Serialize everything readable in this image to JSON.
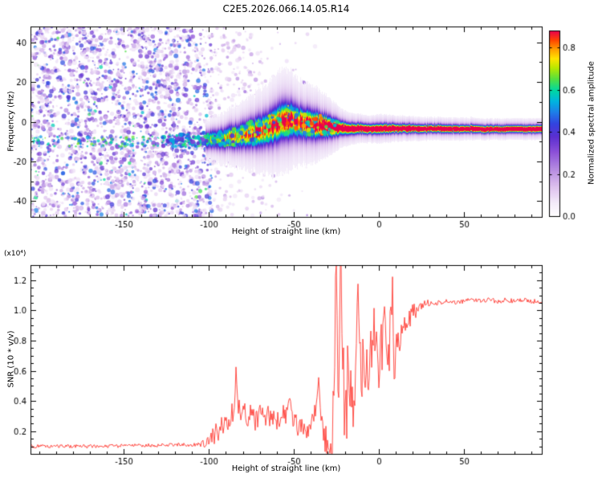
{
  "figure": {
    "title": "C2E5.2026.066.14.05.R14",
    "background": "#ffffff"
  },
  "chart_data": [
    {
      "type": "heatmap",
      "name": "spectrogram",
      "xlabel": "Height of straight line (km)",
      "ylabel": "Frequency (Hz)",
      "xlim": [
        -205,
        96
      ],
      "ylim": [
        -48,
        48
      ],
      "xticks": [
        -150,
        -100,
        -50,
        0,
        50
      ],
      "xtick_labels": [
        "-150",
        "-100",
        "-50",
        "0",
        "50"
      ],
      "yticks": [
        -40,
        -20,
        0,
        20,
        40
      ],
      "ytick_labels": [
        "-40",
        "-20",
        "0",
        "20",
        "40"
      ],
      "x_minor": 10,
      "y_minor": 10,
      "colorbar": {
        "label": "Normalized spectral amplitude",
        "ticks": [
          "0.0",
          "0.2",
          "0.4",
          "0.6",
          "0.8"
        ],
        "tick_values": [
          0,
          0.2,
          0.4,
          0.6,
          0.8
        ],
        "range": [
          0,
          0.88
        ],
        "colormap_stops": [
          [
            0,
            "#ffffff"
          ],
          [
            0.07,
            "#f4ecfa"
          ],
          [
            0.16,
            "#ddc0ee"
          ],
          [
            0.26,
            "#b388e0"
          ],
          [
            0.35,
            "#8a4fd8"
          ],
          [
            0.43,
            "#5b2fd0"
          ],
          [
            0.5,
            "#3344e0"
          ],
          [
            0.56,
            "#1e7ce8"
          ],
          [
            0.62,
            "#00b4e0"
          ],
          [
            0.68,
            "#00d8a0"
          ],
          [
            0.74,
            "#55e040"
          ],
          [
            0.8,
            "#b8e800"
          ],
          [
            0.85,
            "#ffe400"
          ],
          [
            0.9,
            "#ffa000"
          ],
          [
            0.95,
            "#ff4400"
          ],
          [
            1,
            "#e80050"
          ]
        ]
      },
      "noise_region": {
        "x_range": [
          -205,
          -98
        ],
        "count": 2600,
        "amp_range": [
          0.08,
          0.5
        ],
        "size_range": [
          0.8,
          3.0
        ]
      },
      "mid_speckles": {
        "x_range": [
          -98,
          -28
        ],
        "tries": 900,
        "amp_range": [
          0.07,
          0.3
        ]
      },
      "buried_track": {
        "x_range": [
          -205,
          -100
        ],
        "f_center": -10,
        "f_jitter": 2.5,
        "count": 150,
        "amp_range": [
          0.45,
          0.68
        ]
      },
      "track_dots": {
        "x_range": [
          -130,
          -24
        ],
        "count": 260
      },
      "signal_track": [
        [
          -205,
          -10,
          3.5,
          0.55
        ],
        [
          -150,
          -10,
          3.5,
          0.55
        ],
        [
          -120,
          -9.5,
          3.5,
          0.58
        ],
        [
          -100,
          -9,
          4,
          0.6
        ],
        [
          -90,
          -8,
          5,
          0.65
        ],
        [
          -80,
          -6.5,
          6,
          0.7
        ],
        [
          -70,
          -4.5,
          7,
          0.75
        ],
        [
          -63,
          -2.5,
          8,
          0.78
        ],
        [
          -57,
          0.5,
          8.5,
          0.82
        ],
        [
          -52,
          1,
          8,
          0.8
        ],
        [
          -47,
          0,
          7,
          0.8
        ],
        [
          -42,
          -1,
          6.5,
          0.82
        ],
        [
          -37,
          -1.5,
          6,
          0.85
        ],
        [
          -32,
          -2,
          5,
          0.88
        ],
        [
          -27,
          -2.5,
          4,
          0.92
        ],
        [
          -22,
          -3,
          3,
          0.95
        ],
        [
          -18,
          -3.5,
          2.5,
          0.97
        ],
        [
          -12,
          -3.2,
          2.2,
          1
        ],
        [
          -6,
          -3.6,
          2,
          1
        ],
        [
          0,
          -3.4,
          2.2,
          1
        ],
        [
          8,
          -3.2,
          2,
          1
        ],
        [
          20,
          -3.4,
          1.8,
          1
        ],
        [
          40,
          -3.4,
          1.7,
          1
        ],
        [
          70,
          -3.5,
          1.6,
          1
        ],
        [
          96,
          -3.5,
          1.6,
          1
        ]
      ]
    },
    {
      "type": "line",
      "name": "snr",
      "xlabel": "Height of straight line (km)",
      "ylabel": "SNR (10 * v/v)",
      "scale_note": "(x10⁴)",
      "color": "#ff3b33",
      "xlim": [
        -205,
        96
      ],
      "ylim": [
        0.05,
        1.3
      ],
      "xticks": [
        -150,
        -100,
        -50,
        0,
        50
      ],
      "xtick_labels": [
        "-150",
        "-100",
        "-50",
        "0",
        "50"
      ],
      "yticks": [
        0.2,
        0.4,
        0.6,
        0.8,
        1.0,
        1.2
      ],
      "ytick_labels": [
        "0.2",
        "0.4",
        "0.6",
        "0.8",
        "1.0",
        "1.2"
      ],
      "x_minor": 10,
      "y_minor": 0.05,
      "points": [
        [
          -205,
          0.1
        ],
        [
          -170,
          0.1
        ],
        [
          -140,
          0.105
        ],
        [
          -120,
          0.11
        ],
        [
          -108,
          0.11
        ],
        [
          -103,
          0.12
        ],
        [
          -99,
          0.14
        ],
        [
          -96,
          0.18
        ],
        [
          -93,
          0.22
        ],
        [
          -90,
          0.25
        ],
        [
          -87,
          0.3
        ],
        [
          -85,
          0.35
        ],
        [
          -84,
          0.62
        ],
        [
          -83,
          0.38
        ],
        [
          -81,
          0.3
        ],
        [
          -79,
          0.35
        ],
        [
          -77,
          0.28
        ],
        [
          -75,
          0.33
        ],
        [
          -73,
          0.26
        ],
        [
          -71,
          0.3
        ],
        [
          -69,
          0.35
        ],
        [
          -67,
          0.28
        ],
        [
          -65,
          0.32
        ],
        [
          -63,
          0.26
        ],
        [
          -61,
          0.3
        ],
        [
          -59,
          0.25
        ],
        [
          -57,
          0.32
        ],
        [
          -55,
          0.28
        ],
        [
          -53,
          0.35
        ],
        [
          -52,
          0.45
        ],
        [
          -51,
          0.3
        ],
        [
          -49,
          0.26
        ],
        [
          -47,
          0.22
        ],
        [
          -45,
          0.25
        ],
        [
          -43,
          0.18
        ],
        [
          -41,
          0.22
        ],
        [
          -39,
          0.28
        ],
        [
          -37,
          0.35
        ],
        [
          -35,
          0.5
        ],
        [
          -34,
          0.3
        ],
        [
          -33,
          0.2
        ],
        [
          -31,
          0.14
        ],
        [
          -29,
          0.12
        ],
        [
          -27,
          0.3
        ],
        [
          -26,
          0.7
        ],
        [
          -25,
          1.28
        ],
        [
          -24,
          0.4
        ],
        [
          -23,
          0.85
        ],
        [
          -22,
          1.3
        ],
        [
          -21,
          0.55
        ],
        [
          -20,
          0.35
        ],
        [
          -19,
          0.28
        ],
        [
          -18,
          0.6
        ],
        [
          -17,
          0.4
        ],
        [
          -16,
          0.55
        ],
        [
          -15,
          0.35
        ],
        [
          -14,
          0.5
        ],
        [
          -13,
          0.75
        ],
        [
          -12,
          1.28
        ],
        [
          -11,
          0.7
        ],
        [
          -10,
          0.55
        ],
        [
          -9,
          0.68
        ],
        [
          -8,
          0.52
        ],
        [
          -7,
          0.72
        ],
        [
          -6,
          0.55
        ],
        [
          -5,
          0.7
        ],
        [
          -4,
          0.6
        ],
        [
          -3,
          0.92
        ],
        [
          -2,
          0.65
        ],
        [
          -1,
          0.75
        ],
        [
          0,
          0.58
        ],
        [
          1,
          0.8
        ],
        [
          2,
          0.68
        ],
        [
          3,
          1.0
        ],
        [
          4,
          0.75
        ],
        [
          5,
          0.88
        ],
        [
          6,
          0.7
        ],
        [
          7,
          0.95
        ],
        [
          8,
          1.15
        ],
        [
          9,
          0.48
        ],
        [
          10,
          0.72
        ],
        [
          11,
          0.85
        ],
        [
          12,
          0.78
        ],
        [
          13,
          0.88
        ],
        [
          14,
          0.82
        ],
        [
          15,
          0.9
        ],
        [
          17,
          0.93
        ],
        [
          19,
          0.96
        ],
        [
          21,
          1.0
        ],
        [
          24,
          1.02
        ],
        [
          27,
          1.04
        ],
        [
          30,
          1.05
        ],
        [
          35,
          1.05
        ],
        [
          40,
          1.06
        ],
        [
          45,
          1.05
        ],
        [
          50,
          1.06
        ],
        [
          55,
          1.07
        ],
        [
          60,
          1.06
        ],
        [
          65,
          1.07
        ],
        [
          70,
          1.06
        ],
        [
          75,
          1.07
        ],
        [
          80,
          1.06
        ],
        [
          85,
          1.07
        ],
        [
          90,
          1.06
        ],
        [
          96,
          1.06
        ]
      ],
      "noise_segments": [
        [
          -205,
          -105,
          0.012
        ],
        [
          -105,
          -99,
          0.03
        ],
        [
          -99,
          -86,
          0.07
        ],
        [
          -86,
          -45,
          0.07
        ],
        [
          -45,
          -36,
          0.05
        ],
        [
          -36,
          -29,
          0.1
        ],
        [
          -29,
          -18,
          0.3
        ],
        [
          -18,
          -9,
          0.22
        ],
        [
          -9,
          5,
          0.2
        ],
        [
          5,
          9,
          0.25
        ],
        [
          9,
          14,
          0.1
        ],
        [
          14,
          22,
          0.06
        ],
        [
          22,
          30,
          0.025
        ],
        [
          30,
          96,
          0.015
        ]
      ]
    }
  ]
}
